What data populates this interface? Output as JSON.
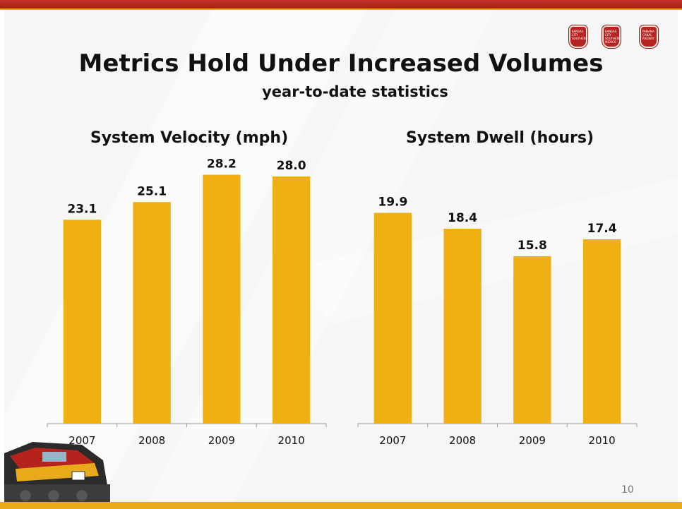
{
  "slide": {
    "title": "Metrics Hold Under Increased Volumes",
    "subtitle": "year-to-date statistics",
    "page_number": "10",
    "logos": [
      "kcs-logo",
      "kcsm-logo",
      "panama-canal-railway-logo"
    ],
    "colors": {
      "bar": "#efb014",
      "top_bar": "#b4241d",
      "bottom_bar": "#e8a91b"
    }
  },
  "chart_data": [
    {
      "type": "bar",
      "title": "System Velocity (mph)",
      "categories": [
        "2007",
        "2008",
        "2009",
        "2010"
      ],
      "values": [
        23.1,
        25.1,
        28.2,
        28.0
      ],
      "value_labels": [
        "23.1",
        "25.1",
        "28.2",
        "28.0"
      ],
      "ylim": [
        0,
        30
      ],
      "grid": false,
      "color": "#efb014"
    },
    {
      "type": "bar",
      "title": "System Dwell (hours)",
      "categories": [
        "2007",
        "2008",
        "2009",
        "2010"
      ],
      "values": [
        19.9,
        18.4,
        15.8,
        17.4
      ],
      "value_labels": [
        "19.9",
        "18.4",
        "15.8",
        "17.4"
      ],
      "ylim": [
        0,
        25
      ],
      "grid": false,
      "color": "#efb014"
    }
  ]
}
